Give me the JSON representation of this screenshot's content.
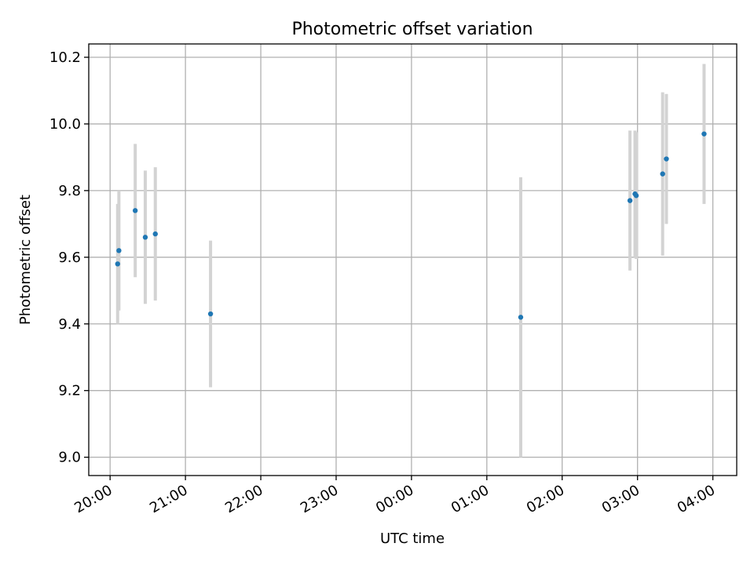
{
  "chart_data": {
    "type": "scatter",
    "title": "Photometric offset variation",
    "xlabel": "UTC time",
    "ylabel": "Photometric offset",
    "x_ticks": [
      "20:00",
      "21:00",
      "22:00",
      "23:00",
      "00:00",
      "01:00",
      "02:00",
      "03:00",
      "04:00"
    ],
    "y_ticks": [
      "9.0",
      "9.2",
      "9.4",
      "9.6",
      "9.8",
      "10.0",
      "10.2"
    ],
    "x_range": [
      "19:43",
      "04:19"
    ],
    "ylim": [
      8.945,
      10.24
    ],
    "grid": true,
    "legend": "none",
    "colors": {
      "point": "#1f77b4",
      "errorbar": "#d3d3d3",
      "grid": "#b0b0b0"
    },
    "points": [
      {
        "x": "20:06",
        "y": 9.58,
        "err": 0.18
      },
      {
        "x": "20:07",
        "y": 9.62,
        "err": 0.18
      },
      {
        "x": "20:20",
        "y": 9.74,
        "err": 0.2
      },
      {
        "x": "20:28",
        "y": 9.66,
        "err": 0.2
      },
      {
        "x": "20:36",
        "y": 9.67,
        "err": 0.2
      },
      {
        "x": "21:20",
        "y": 9.43,
        "err": 0.22
      },
      {
        "x": "01:27",
        "y": 9.42,
        "err": 0.42
      },
      {
        "x": "02:54",
        "y": 9.77,
        "err": 0.21
      },
      {
        "x": "02:58",
        "y": 9.79,
        "err": 0.19
      },
      {
        "x": "02:59",
        "y": 9.785,
        "err": 0.19
      },
      {
        "x": "03:20",
        "y": 9.85,
        "err": 0.245
      },
      {
        "x": "03:23",
        "y": 9.895,
        "err": 0.195
      },
      {
        "x": "03:53",
        "y": 9.97,
        "err": 0.21
      }
    ]
  }
}
